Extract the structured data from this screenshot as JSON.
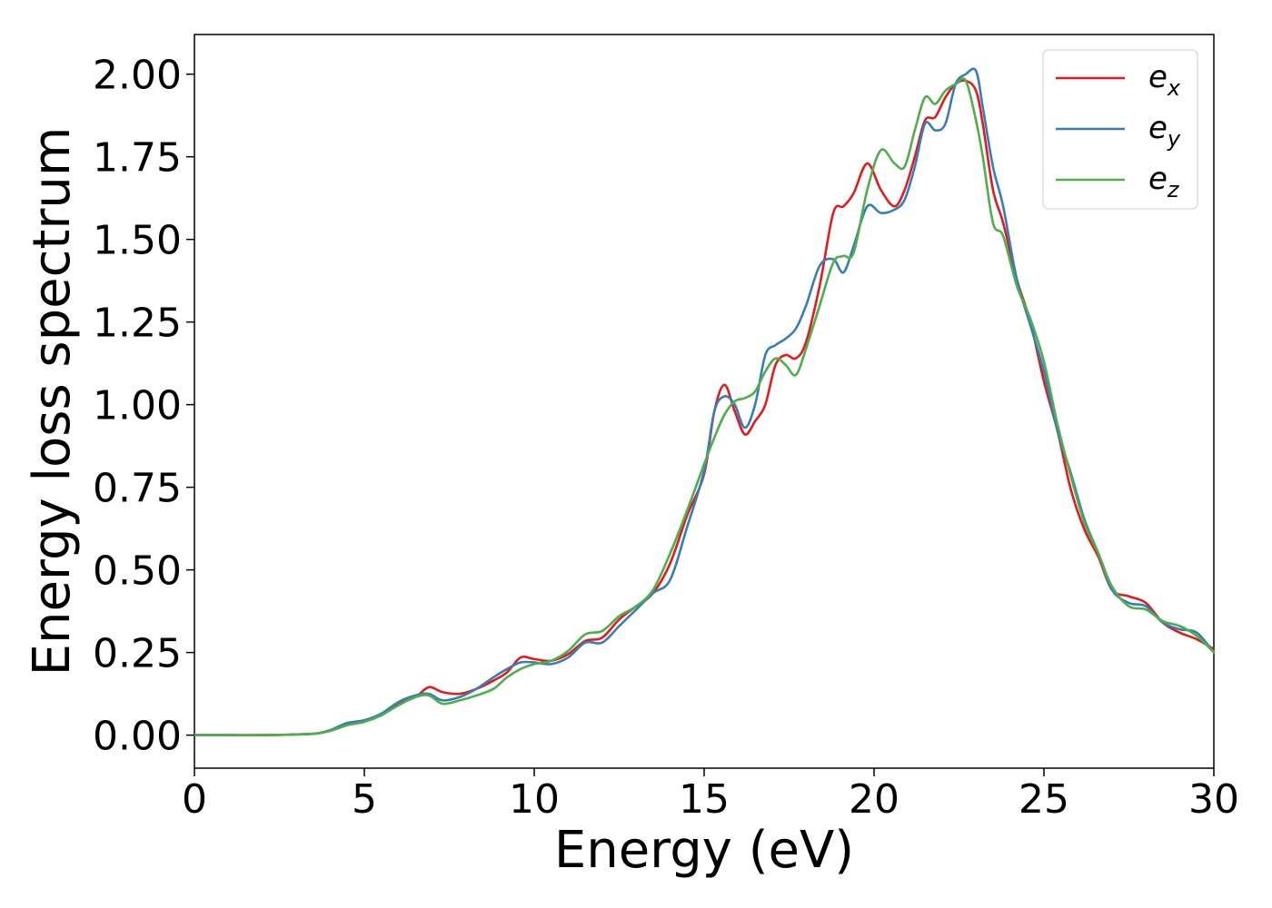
{
  "chart_data": {
    "type": "line",
    "title": "",
    "xlabel": "Energy (eV)",
    "ylabel": "Energy loss spectrum",
    "xlim": [
      0,
      30
    ],
    "ylim": [
      -0.1,
      2.12
    ],
    "xticks": [
      "0",
      "5",
      "10",
      "15",
      "20",
      "25",
      "30"
    ],
    "yticks": [
      "0.00",
      "0.25",
      "0.50",
      "0.75",
      "1.00",
      "1.25",
      "1.50",
      "1.75",
      "2.00"
    ],
    "grid": false,
    "legend_position": "top-right",
    "series": [
      {
        "name": "e_x",
        "label_base": "e",
        "label_sub": "x",
        "color": "#e41a1c",
        "x": [
          0,
          1,
          2,
          3,
          3.6,
          4.0,
          4.5,
          5.0,
          5.5,
          6.0,
          6.5,
          6.9,
          7.3,
          7.8,
          8.3,
          8.8,
          9.2,
          9.6,
          10.0,
          10.5,
          11.0,
          11.5,
          12.0,
          12.5,
          13.0,
          13.5,
          14.0,
          14.5,
          15.0,
          15.3,
          15.6,
          15.9,
          16.2,
          16.5,
          16.8,
          17.1,
          17.4,
          17.7,
          18.0,
          18.4,
          18.8,
          19.1,
          19.4,
          19.8,
          20.2,
          20.6,
          20.9,
          21.2,
          21.5,
          21.8,
          22.1,
          22.4,
          22.7,
          23.0,
          23.2,
          23.5,
          23.8,
          24.2,
          24.6,
          25.0,
          25.4,
          25.8,
          26.2,
          26.6,
          27.0,
          27.5,
          28.0,
          28.5,
          29.0,
          29.5,
          30.0
        ],
        "y": [
          0,
          0,
          0,
          0.002,
          0.005,
          0.015,
          0.035,
          0.045,
          0.06,
          0.095,
          0.115,
          0.145,
          0.13,
          0.125,
          0.14,
          0.165,
          0.19,
          0.235,
          0.23,
          0.225,
          0.245,
          0.285,
          0.295,
          0.35,
          0.39,
          0.43,
          0.52,
          0.665,
          0.79,
          0.98,
          1.06,
          0.98,
          0.91,
          0.95,
          1.0,
          1.12,
          1.15,
          1.14,
          1.19,
          1.36,
          1.58,
          1.6,
          1.64,
          1.73,
          1.65,
          1.6,
          1.65,
          1.75,
          1.86,
          1.87,
          1.93,
          1.97,
          1.98,
          1.95,
          1.85,
          1.65,
          1.55,
          1.38,
          1.25,
          1.07,
          0.92,
          0.74,
          0.62,
          0.54,
          0.44,
          0.42,
          0.4,
          0.34,
          0.31,
          0.29,
          0.26
        ]
      },
      {
        "name": "e_y",
        "label_base": "e",
        "label_sub": "y",
        "color": "#377eb8",
        "x": [
          0,
          1,
          2,
          3,
          3.6,
          4.0,
          4.5,
          5.0,
          5.5,
          6.0,
          6.5,
          6.9,
          7.3,
          7.8,
          8.3,
          8.8,
          9.2,
          9.6,
          10.0,
          10.5,
          11.0,
          11.5,
          12.0,
          12.5,
          13.0,
          13.5,
          14.0,
          14.5,
          15.0,
          15.3,
          15.6,
          15.9,
          16.2,
          16.5,
          16.8,
          17.1,
          17.4,
          17.7,
          18.0,
          18.4,
          18.8,
          19.1,
          19.4,
          19.8,
          20.2,
          20.6,
          20.9,
          21.2,
          21.5,
          21.8,
          22.1,
          22.4,
          22.7,
          23.0,
          23.2,
          23.5,
          23.8,
          24.2,
          24.6,
          25.0,
          25.4,
          25.8,
          26.2,
          26.6,
          27.0,
          27.5,
          28.0,
          28.5,
          29.0,
          29.5,
          30.0
        ],
        "y": [
          0,
          0,
          0,
          0.002,
          0.005,
          0.015,
          0.037,
          0.045,
          0.065,
          0.1,
          0.12,
          0.125,
          0.105,
          0.115,
          0.14,
          0.175,
          0.2,
          0.22,
          0.22,
          0.215,
          0.235,
          0.28,
          0.28,
          0.33,
          0.38,
          0.43,
          0.47,
          0.63,
          0.8,
          0.98,
          1.025,
          1.0,
          0.93,
          1.0,
          1.15,
          1.18,
          1.2,
          1.23,
          1.3,
          1.42,
          1.44,
          1.4,
          1.48,
          1.6,
          1.58,
          1.59,
          1.62,
          1.72,
          1.85,
          1.83,
          1.85,
          1.97,
          2.0,
          2.01,
          1.9,
          1.72,
          1.6,
          1.38,
          1.24,
          1.1,
          0.92,
          0.79,
          0.65,
          0.55,
          0.44,
          0.4,
          0.39,
          0.34,
          0.32,
          0.31,
          0.25
        ]
      },
      {
        "name": "e_z",
        "label_base": "e",
        "label_sub": "z",
        "color": "#4daf4a",
        "x": [
          0,
          1,
          2,
          3,
          3.6,
          4.0,
          4.5,
          5.0,
          5.5,
          6.0,
          6.5,
          6.9,
          7.3,
          7.8,
          8.3,
          8.8,
          9.2,
          9.6,
          10.0,
          10.5,
          11.0,
          11.5,
          12.0,
          12.5,
          13.0,
          13.5,
          14.0,
          14.5,
          15.0,
          15.3,
          15.6,
          15.9,
          16.2,
          16.5,
          16.8,
          17.1,
          17.4,
          17.7,
          18.0,
          18.4,
          18.8,
          19.1,
          19.4,
          19.8,
          20.2,
          20.6,
          20.9,
          21.2,
          21.5,
          21.8,
          22.1,
          22.4,
          22.7,
          23.0,
          23.2,
          23.5,
          23.8,
          24.2,
          24.6,
          25.0,
          25.4,
          25.8,
          26.2,
          26.6,
          27.0,
          27.5,
          28.0,
          28.5,
          29.0,
          29.5,
          30.0
        ],
        "y": [
          0,
          0,
          0,
          0.002,
          0.005,
          0.013,
          0.03,
          0.04,
          0.06,
          0.09,
          0.115,
          0.12,
          0.095,
          0.105,
          0.12,
          0.14,
          0.175,
          0.2,
          0.215,
          0.225,
          0.255,
          0.305,
          0.315,
          0.36,
          0.39,
          0.44,
          0.55,
          0.68,
          0.82,
          0.9,
          0.97,
          1.01,
          1.02,
          1.04,
          1.1,
          1.14,
          1.12,
          1.09,
          1.17,
          1.3,
          1.43,
          1.45,
          1.46,
          1.65,
          1.77,
          1.73,
          1.72,
          1.83,
          1.93,
          1.91,
          1.95,
          1.97,
          1.98,
          1.86,
          1.75,
          1.55,
          1.51,
          1.36,
          1.26,
          1.13,
          0.94,
          0.78,
          0.64,
          0.55,
          0.45,
          0.39,
          0.38,
          0.345,
          0.33,
          0.3,
          0.25
        ]
      }
    ]
  }
}
